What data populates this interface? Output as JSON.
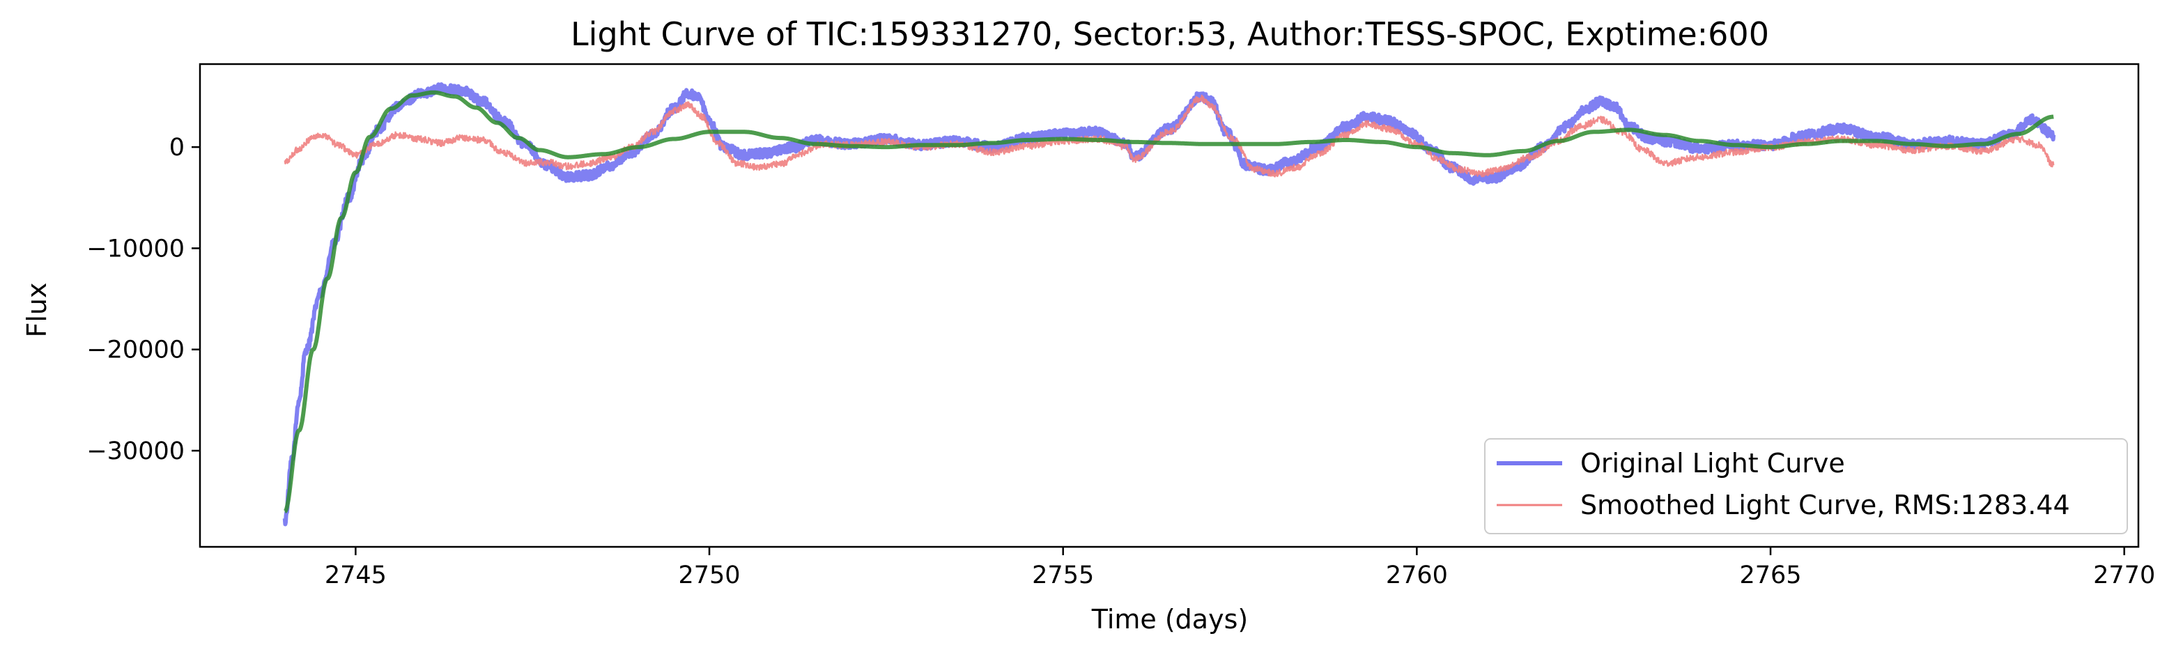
{
  "chart_data": {
    "type": "line",
    "title": "Light Curve of TIC:159331270, Sector:53, Author:TESS-SPOC, Exptime:600",
    "xlabel": "Time (days)",
    "ylabel": "Flux",
    "xlim": [
      2742.8,
      2770.2
    ],
    "ylim": [
      -39500,
      8200
    ],
    "xticks": [
      2745,
      2750,
      2755,
      2760,
      2765,
      2770
    ],
    "yticks": [
      -30000,
      -20000,
      -10000,
      0
    ],
    "xtick_labels": [
      "2745",
      "2750",
      "2755",
      "2760",
      "2765",
      "2770"
    ],
    "ytick_labels": [
      "−30000",
      "−20000",
      "−10000",
      "0"
    ],
    "grid": false,
    "legend": {
      "position": "lower-right"
    },
    "series": [
      {
        "name": "Original Light Curve",
        "color": "#5555ee",
        "noise": 450,
        "points": [
          [
            2744.0,
            -37000
          ],
          [
            2744.1,
            -31000
          ],
          [
            2744.2,
            -25000
          ],
          [
            2744.3,
            -20000
          ],
          [
            2744.5,
            -14500
          ],
          [
            2744.7,
            -9500
          ],
          [
            2744.9,
            -5000
          ],
          [
            2745.1,
            -1200
          ],
          [
            2745.3,
            1600
          ],
          [
            2745.6,
            4000
          ],
          [
            2745.9,
            5200
          ],
          [
            2746.2,
            5800
          ],
          [
            2746.5,
            5600
          ],
          [
            2746.8,
            4500
          ],
          [
            2747.1,
            2500
          ],
          [
            2747.4,
            200
          ],
          [
            2747.7,
            -1800
          ],
          [
            2748.0,
            -3000
          ],
          [
            2748.3,
            -2800
          ],
          [
            2748.6,
            -1800
          ],
          [
            2748.9,
            -500
          ],
          [
            2749.2,
            1200
          ],
          [
            2749.5,
            3800
          ],
          [
            2749.7,
            5300
          ],
          [
            2749.85,
            4800
          ],
          [
            2750.0,
            2500
          ],
          [
            2750.2,
            0
          ],
          [
            2750.5,
            -800
          ],
          [
            2750.8,
            -600
          ],
          [
            2751.2,
            0
          ],
          [
            2751.5,
            700
          ],
          [
            2752.0,
            300
          ],
          [
            2752.5,
            800
          ],
          [
            2753.0,
            200
          ],
          [
            2753.5,
            600
          ],
          [
            2754.0,
            0
          ],
          [
            2754.5,
            900
          ],
          [
            2755.0,
            1300
          ],
          [
            2755.5,
            1500
          ],
          [
            2755.9,
            300
          ],
          [
            2756.0,
            -1000
          ],
          [
            2756.5,
            1800
          ],
          [
            2756.95,
            5000
          ],
          [
            2757.1,
            4500
          ],
          [
            2757.3,
            1500
          ],
          [
            2757.6,
            -1800
          ],
          [
            2757.9,
            -2300
          ],
          [
            2758.2,
            -1500
          ],
          [
            2758.6,
            0
          ],
          [
            2759.0,
            2000
          ],
          [
            2759.3,
            3000
          ],
          [
            2759.6,
            2600
          ],
          [
            2759.9,
            1500
          ],
          [
            2760.2,
            -200
          ],
          [
            2760.5,
            -2000
          ],
          [
            2760.8,
            -3200
          ],
          [
            2761.1,
            -3000
          ],
          [
            2761.4,
            -2000
          ],
          [
            2761.8,
            0
          ],
          [
            2762.1,
            2000
          ],
          [
            2762.4,
            3800
          ],
          [
            2762.6,
            4500
          ],
          [
            2762.8,
            4000
          ],
          [
            2763.0,
            2000
          ],
          [
            2763.3,
            800
          ],
          [
            2763.6,
            500
          ],
          [
            2764.0,
            -200
          ],
          [
            2764.5,
            200
          ],
          [
            2765.0,
            200
          ],
          [
            2765.5,
            1200
          ],
          [
            2766.0,
            1800
          ],
          [
            2766.5,
            1000
          ],
          [
            2767.0,
            300
          ],
          [
            2767.5,
            600
          ],
          [
            2768.0,
            300
          ],
          [
            2768.4,
            1300
          ],
          [
            2768.7,
            2700
          ],
          [
            2769.0,
            1200
          ]
        ]
      },
      {
        "name": "Smoothed Light Curve, RMS:1283.44",
        "color": "#f08080",
        "noise": 320,
        "points": [
          [
            2744.0,
            -1500
          ],
          [
            2744.2,
            -200
          ],
          [
            2744.4,
            1000
          ],
          [
            2744.55,
            1200
          ],
          [
            2744.75,
            200
          ],
          [
            2745.0,
            -800
          ],
          [
            2745.3,
            300
          ],
          [
            2745.6,
            1200
          ],
          [
            2745.9,
            800
          ],
          [
            2746.2,
            400
          ],
          [
            2746.5,
            900
          ],
          [
            2746.8,
            700
          ],
          [
            2747.1,
            -600
          ],
          [
            2747.4,
            -1600
          ],
          [
            2747.7,
            -1500
          ],
          [
            2748.0,
            -1900
          ],
          [
            2748.3,
            -1600
          ],
          [
            2748.6,
            -1000
          ],
          [
            2748.9,
            0
          ],
          [
            2749.2,
            1500
          ],
          [
            2749.5,
            3600
          ],
          [
            2749.7,
            4200
          ],
          [
            2749.9,
            3000
          ],
          [
            2750.1,
            500
          ],
          [
            2750.4,
            -1600
          ],
          [
            2750.7,
            -2000
          ],
          [
            2751.0,
            -1700
          ],
          [
            2751.3,
            -600
          ],
          [
            2751.6,
            300
          ],
          [
            2752.0,
            200
          ],
          [
            2752.5,
            500
          ],
          [
            2753.0,
            0
          ],
          [
            2753.5,
            300
          ],
          [
            2754.0,
            -500
          ],
          [
            2754.5,
            100
          ],
          [
            2755.0,
            600
          ],
          [
            2755.5,
            800
          ],
          [
            2755.9,
            0
          ],
          [
            2756.0,
            -1200
          ],
          [
            2756.5,
            1500
          ],
          [
            2756.95,
            4800
          ],
          [
            2757.1,
            4000
          ],
          [
            2757.4,
            800
          ],
          [
            2757.7,
            -2200
          ],
          [
            2758.0,
            -2600
          ],
          [
            2758.3,
            -2000
          ],
          [
            2758.6,
            -700
          ],
          [
            2759.0,
            1200
          ],
          [
            2759.3,
            2300
          ],
          [
            2759.6,
            1800
          ],
          [
            2760.0,
            300
          ],
          [
            2760.3,
            -1200
          ],
          [
            2760.6,
            -2200
          ],
          [
            2760.9,
            -2600
          ],
          [
            2761.2,
            -2200
          ],
          [
            2761.6,
            -1000
          ],
          [
            2762.0,
            600
          ],
          [
            2762.3,
            2000
          ],
          [
            2762.6,
            2700
          ],
          [
            2762.9,
            1500
          ],
          [
            2763.2,
            -300
          ],
          [
            2763.5,
            -1600
          ],
          [
            2764.0,
            -1000
          ],
          [
            2764.5,
            -500
          ],
          [
            2765.0,
            0
          ],
          [
            2765.5,
            500
          ],
          [
            2766.0,
            800
          ],
          [
            2766.5,
            200
          ],
          [
            2767.0,
            -300
          ],
          [
            2767.5,
            100
          ],
          [
            2768.0,
            -400
          ],
          [
            2768.5,
            800
          ],
          [
            2768.8,
            200
          ],
          [
            2769.0,
            -1800
          ]
        ]
      },
      {
        "name": "",
        "color": "#2e8b2e",
        "noise": 0,
        "points": [
          [
            2744.0,
            -36000
          ],
          [
            2744.2,
            -28000
          ],
          [
            2744.4,
            -20000
          ],
          [
            2744.6,
            -13000
          ],
          [
            2744.8,
            -7000
          ],
          [
            2745.0,
            -2500
          ],
          [
            2745.2,
            1000
          ],
          [
            2745.5,
            3800
          ],
          [
            2745.8,
            5100
          ],
          [
            2746.1,
            5400
          ],
          [
            2746.4,
            5000
          ],
          [
            2746.7,
            3900
          ],
          [
            2747.0,
            2400
          ],
          [
            2747.3,
            900
          ],
          [
            2747.6,
            -300
          ],
          [
            2748.0,
            -1000
          ],
          [
            2748.5,
            -700
          ],
          [
            2749.0,
            0
          ],
          [
            2749.5,
            800
          ],
          [
            2750.0,
            1500
          ],
          [
            2750.5,
            1500
          ],
          [
            2751.0,
            900
          ],
          [
            2751.5,
            300
          ],
          [
            2752.0,
            100
          ],
          [
            2752.5,
            0
          ],
          [
            2753.0,
            200
          ],
          [
            2753.5,
            200
          ],
          [
            2754.0,
            400
          ],
          [
            2754.5,
            700
          ],
          [
            2755.0,
            800
          ],
          [
            2755.5,
            700
          ],
          [
            2756.0,
            500
          ],
          [
            2756.5,
            400
          ],
          [
            2757.0,
            300
          ],
          [
            2757.5,
            300
          ],
          [
            2758.0,
            300
          ],
          [
            2758.5,
            500
          ],
          [
            2759.0,
            700
          ],
          [
            2759.5,
            500
          ],
          [
            2760.0,
            0
          ],
          [
            2760.5,
            -600
          ],
          [
            2761.0,
            -800
          ],
          [
            2761.5,
            -400
          ],
          [
            2762.0,
            600
          ],
          [
            2762.5,
            1500
          ],
          [
            2763.0,
            1700
          ],
          [
            2763.5,
            1200
          ],
          [
            2764.0,
            600
          ],
          [
            2764.5,
            200
          ],
          [
            2765.0,
            0
          ],
          [
            2765.5,
            300
          ],
          [
            2766.0,
            600
          ],
          [
            2766.5,
            600
          ],
          [
            2767.0,
            300
          ],
          [
            2767.5,
            100
          ],
          [
            2768.0,
            300
          ],
          [
            2768.5,
            1300
          ],
          [
            2769.0,
            3000
          ]
        ]
      }
    ]
  }
}
